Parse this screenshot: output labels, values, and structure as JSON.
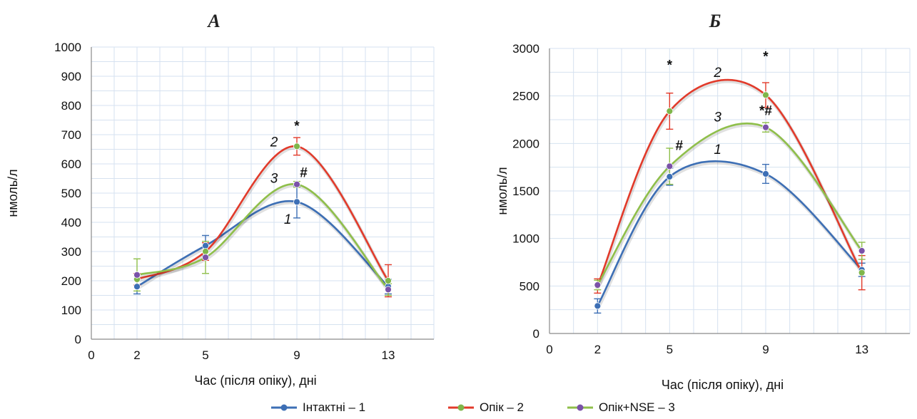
{
  "chart_data": [
    {
      "type": "line",
      "panel": "А",
      "title": "А",
      "xlabel": "Час (після опіку), дні",
      "ylabel": "нмоль/л",
      "xlim": [
        0,
        15
      ],
      "ylim": [
        0,
        1000
      ],
      "xticks": [
        0,
        2,
        5,
        9,
        13
      ],
      "yticks": [
        0,
        100,
        200,
        300,
        400,
        500,
        600,
        700,
        800,
        900,
        1000
      ],
      "grid": true,
      "x": [
        2,
        5,
        9,
        13
      ],
      "series": [
        {
          "name": "Інтактні – 1",
          "label": "1",
          "values": [
            180,
            320,
            470,
            180
          ],
          "errors": [
            25,
            35,
            55,
            25
          ]
        },
        {
          "name": "Опік – 2",
          "label": "2",
          "values": [
            205,
            300,
            660,
            200
          ],
          "errors": [
            20,
            30,
            30,
            55
          ]
        },
        {
          "name": "Опік+NSE – 3",
          "label": "3",
          "values": [
            220,
            280,
            530,
            170
          ],
          "errors": [
            55,
            55,
            10,
            20
          ]
        }
      ],
      "series_label_positions": [
        {
          "label": "1",
          "x": 8.6,
          "y": 395
        },
        {
          "label": "2",
          "x": 8.0,
          "y": 660
        },
        {
          "label": "3",
          "x": 8.0,
          "y": 535
        }
      ],
      "annotations": [
        {
          "text": "*",
          "x": 9,
          "y": 715
        },
        {
          "text": "#",
          "x": 9.3,
          "y": 555
        }
      ]
    },
    {
      "type": "line",
      "panel": "Б",
      "title": "Б",
      "xlabel": "Час (після опіку), дні",
      "ylabel": "нмоль/л",
      "xlim": [
        0,
        15
      ],
      "ylim": [
        0,
        3000
      ],
      "xticks": [
        0,
        2,
        5,
        9,
        13
      ],
      "yticks": [
        0,
        500,
        1000,
        1500,
        2000,
        2500,
        3000
      ],
      "grid": true,
      "x": [
        2,
        5,
        9,
        13
      ],
      "series": [
        {
          "name": "Інтактні – 1",
          "label": "1",
          "values": [
            290,
            1650,
            1680,
            670
          ],
          "errors": [
            75,
            90,
            100,
            70
          ]
        },
        {
          "name": "Опік – 2",
          "label": "2",
          "values": [
            500,
            2340,
            2510,
            640
          ],
          "errors": [
            75,
            190,
            130,
            180
          ]
        },
        {
          "name": "Опік+NSE – 3",
          "label": "3",
          "values": [
            510,
            1760,
            2170,
            870
          ],
          "errors": [
            50,
            190,
            50,
            90
          ]
        }
      ],
      "series_label_positions": [
        {
          "label": "1",
          "x": 7.0,
          "y": 1890
        },
        {
          "label": "2",
          "x": 7.0,
          "y": 2700
        },
        {
          "label": "3",
          "x": 7.0,
          "y": 2230
        }
      ],
      "annotations": [
        {
          "text": "*",
          "x": 5,
          "y": 2780
        },
        {
          "text": "*",
          "x": 9,
          "y": 2870
        },
        {
          "text": "*#",
          "x": 9,
          "y": 2300
        },
        {
          "text": "#",
          "x": 5.4,
          "y": 1930
        }
      ]
    }
  ],
  "legend": {
    "position": "bottom-center",
    "items": [
      {
        "label": "Інтактні – 1",
        "color": "#3d6fb5"
      },
      {
        "label": "Опік – 2",
        "color": "#e23a2a"
      },
      {
        "label": "Опік+NSE – 3",
        "color": "#8fbf4a"
      }
    ]
  },
  "colors": {
    "series": [
      "#3d6fb5",
      "#e23a2a",
      "#8fbf4a"
    ],
    "markers": [
      "#3d6fb5",
      "#7fb64a",
      "#7a52a8"
    ],
    "grid": "#d6e2f0",
    "axis": "#8a8a8a"
  }
}
